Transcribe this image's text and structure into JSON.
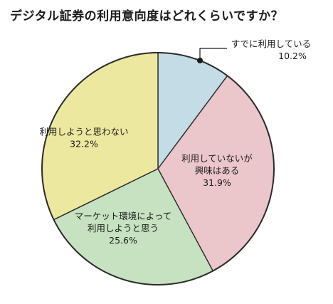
{
  "title": "デジタル証券の利用意向度はどれくらいですか？",
  "chart_data": {
    "type": "pie",
    "title": "デジタル証券の利用意向度はどれくらいですか？",
    "start_angle_deg": 0,
    "direction": "clockwise",
    "slices": [
      {
        "label_lines": [
          "すでに利用している"
        ],
        "value": 10.2,
        "value_text": "10.2%",
        "color": "#c3dce6",
        "label_position": "callout"
      },
      {
        "label_lines": [
          "利用していないが",
          "興味はある"
        ],
        "value": 31.9,
        "value_text": "31.9%",
        "color": "#ebc6cb",
        "label_position": "inside"
      },
      {
        "label_lines": [
          "マーケット環境によって",
          "利用しようと思う"
        ],
        "value": 25.6,
        "value_text": "25.6%",
        "color": "#c6e2c0",
        "label_position": "inside"
      },
      {
        "label_lines": [
          "利用しようと思わない"
        ],
        "value": 32.2,
        "value_text": "32.2%",
        "color": "#ede89f",
        "label_position": "inside"
      }
    ]
  }
}
